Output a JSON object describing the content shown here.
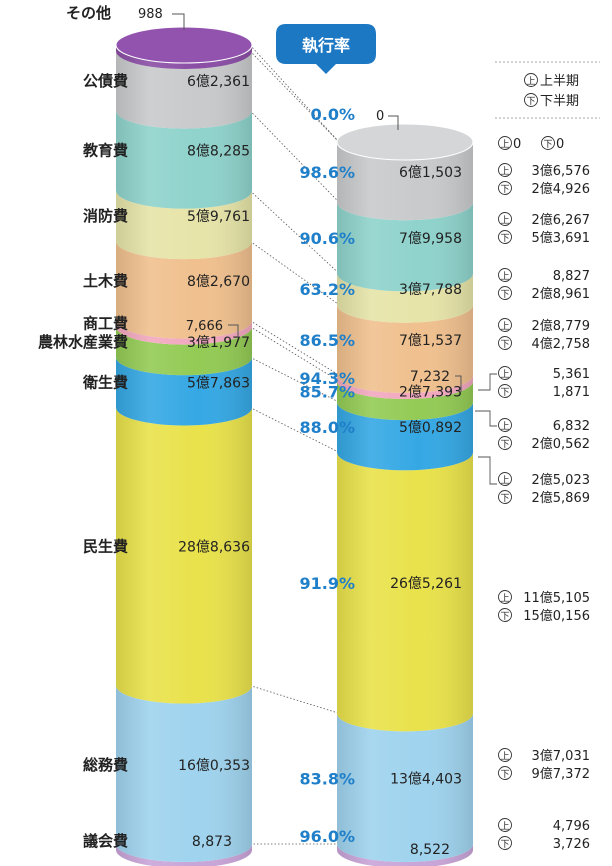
{
  "chart_data": {
    "type": "stacked-cylinder",
    "execution_rate_label": "執行率",
    "legend": {
      "first_half_mark": "上",
      "first_half_label": "上半期",
      "second_half_mark": "下",
      "second_half_label": "下半期"
    },
    "categories": [
      {
        "name": "議会費",
        "budget": "8,873",
        "spent": "8,522",
        "rate": "96.0%",
        "first_half": "4,796",
        "second_half": "3,726",
        "color": "#c9a5d8"
      },
      {
        "name": "総務費",
        "budget": "16億0,353",
        "spent": "13億4,403",
        "rate": "83.8%",
        "first_half": "3億7,031",
        "second_half": "9億7,372",
        "color": "#9fd3ee"
      },
      {
        "name": "民生費",
        "budget": "28億8,636",
        "spent": "26億5,261",
        "rate": "91.9%",
        "first_half": "11億5,105",
        "second_half": "15億0,156",
        "color": "#e9e24b"
      },
      {
        "name": "衛生費",
        "budget": "5億7,863",
        "spent": "5億0,892",
        "rate": "88.0%",
        "first_half": "2億5,023",
        "second_half": "2億5,869",
        "color": "#35a8e4"
      },
      {
        "name": "農林水産業費",
        "budget": "3億1,977",
        "spent": "2億7,393",
        "rate": "85.7%",
        "first_half": "6,832",
        "second_half": "2億0,562",
        "color": "#93cb55"
      },
      {
        "name": "商工費",
        "budget": "7,666",
        "spent": "7,232",
        "rate": "94.3%",
        "first_half": "5,361",
        "second_half": "1,871",
        "color": "#f2a8bf"
      },
      {
        "name": "土木費",
        "budget": "8億2,670",
        "spent": "7億1,537",
        "rate": "86.5%",
        "first_half": "2億8,779",
        "second_half": "4億2,758",
        "color": "#f0c08e"
      },
      {
        "name": "消防費",
        "budget": "5億9,761",
        "spent": "3億7,788",
        "rate": "63.2%",
        "first_half": "8,827",
        "second_half": "2億8,961",
        "color": "#e6e4a8"
      },
      {
        "name": "教育費",
        "budget": "8億8,285",
        "spent": "7億9,958",
        "rate": "90.6%",
        "first_half": "2億6,267",
        "second_half": "5億3,691",
        "color": "#8fd3cc"
      },
      {
        "name": "公債費",
        "budget": "6億2,361",
        "spent": "6億1,503",
        "rate": "98.6%",
        "first_half": "3億6,576",
        "second_half": "2億4,926",
        "color": "#c8cacb"
      },
      {
        "name": "その他",
        "budget": "988",
        "spent": "0",
        "rate": "0.0%",
        "first_half": "0",
        "second_half": "0",
        "color": "#8a4ea5"
      }
    ]
  }
}
